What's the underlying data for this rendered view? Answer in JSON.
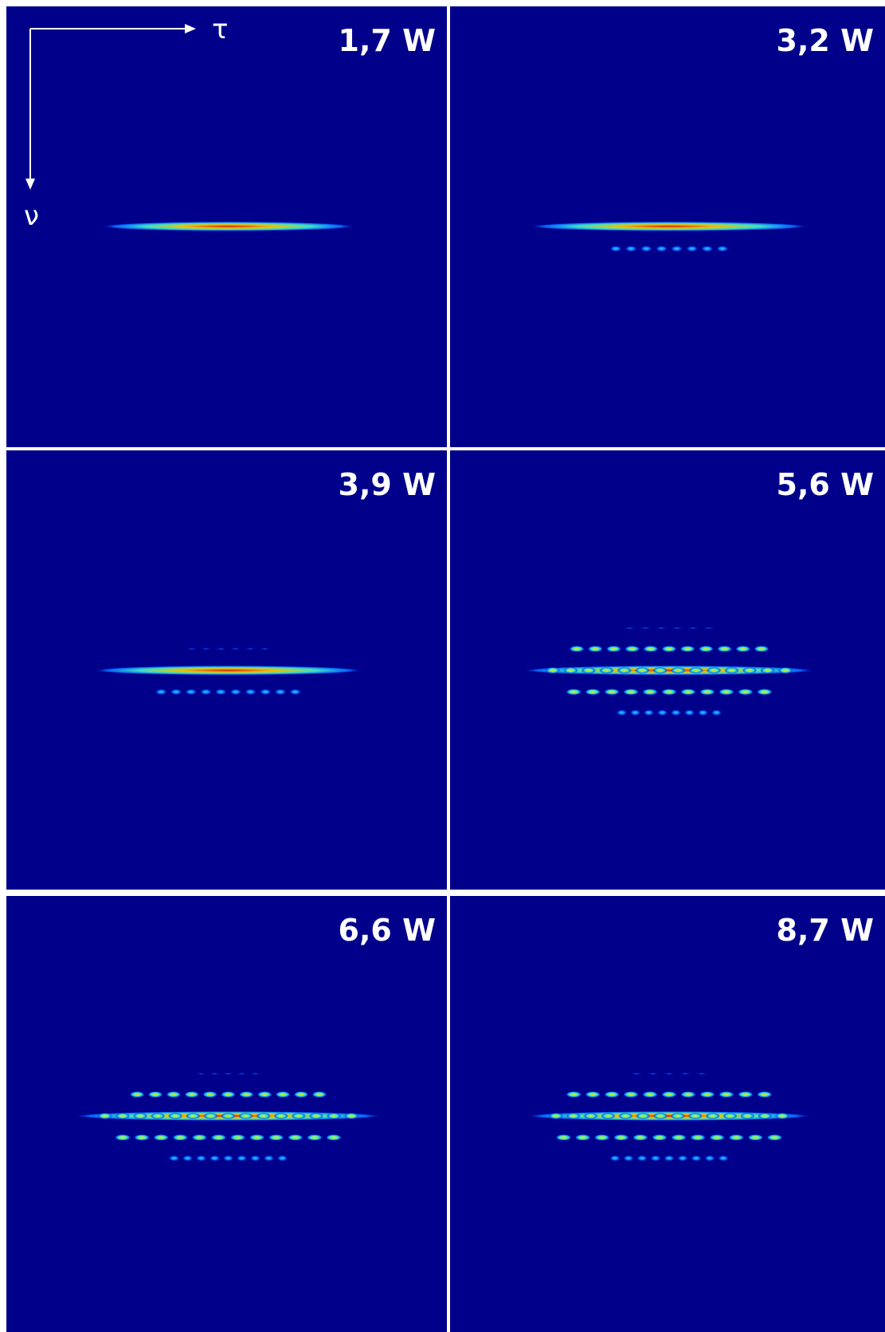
{
  "axes": {
    "x": "τ",
    "y": "ν"
  },
  "panels": [
    {
      "label": "1,7 W"
    },
    {
      "label": "3,2 W"
    },
    {
      "label": "3,9 W"
    },
    {
      "label": "5,6 W"
    },
    {
      "label": "6,6 W"
    },
    {
      "label": "8,7 W"
    }
  ]
}
